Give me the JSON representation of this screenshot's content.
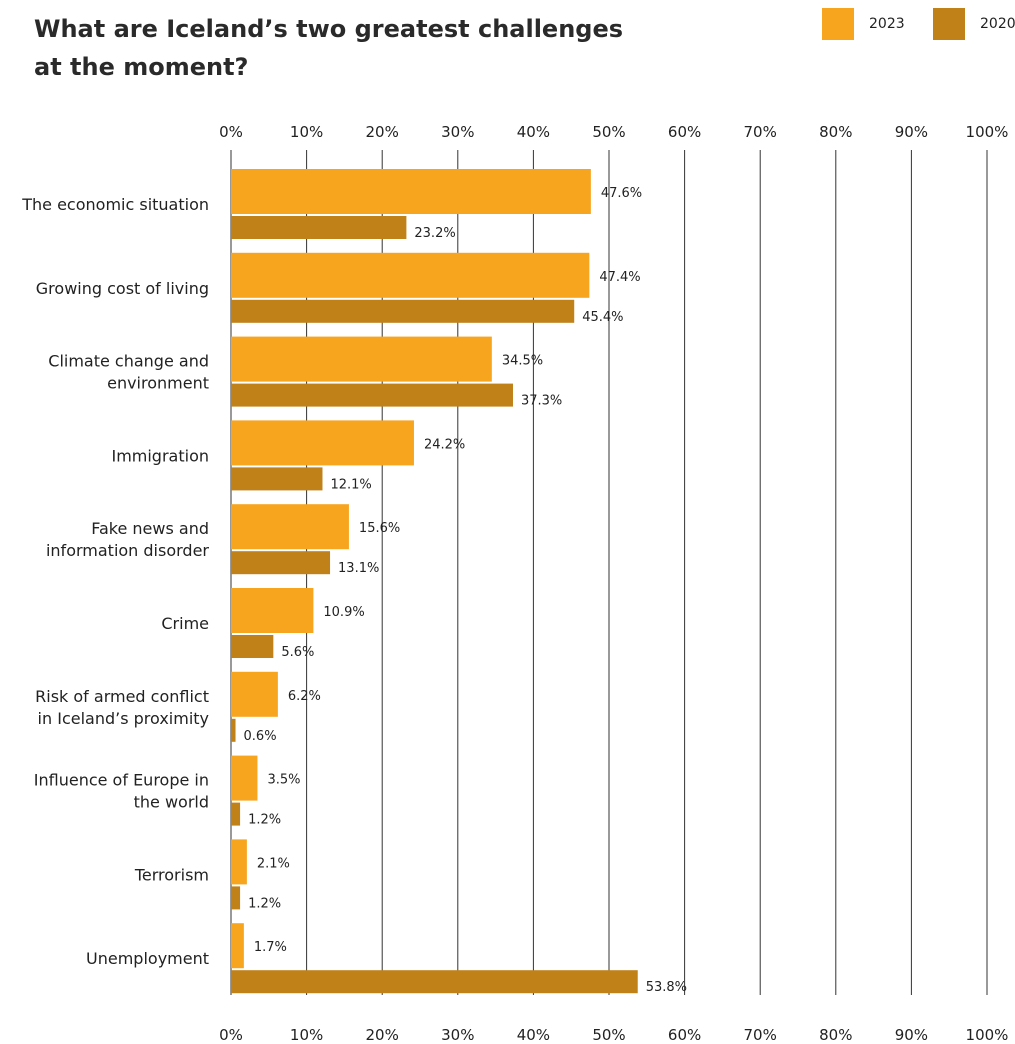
{
  "title": "What are Iceland’s two greatest challenges at the moment?",
  "colors": {
    "2023": "#F7A41F",
    "2020": "#C08119",
    "grid": "#333333"
  },
  "chart_data": {
    "type": "bar",
    "orientation": "horizontal",
    "title": "What are Iceland’s two greatest challenges at the moment?",
    "categories": [
      [
        "The economic situation"
      ],
      [
        "Growing cost of living"
      ],
      [
        "Climate change and",
        "environment"
      ],
      [
        "Immigration"
      ],
      [
        "Fake news and",
        "information disorder"
      ],
      [
        "Crime"
      ],
      [
        "Risk of armed conflict",
        "in Iceland’s proximity"
      ],
      [
        "Influence of Europe in",
        "the world"
      ],
      [
        "Terrorism"
      ],
      [
        "Unemployment"
      ]
    ],
    "series": [
      {
        "name": "2023",
        "color": "#F7A41F",
        "values": [
          47.6,
          47.4,
          34.5,
          24.2,
          15.6,
          10.9,
          6.2,
          3.5,
          2.1,
          1.7
        ],
        "labels": [
          "47.6%",
          "47.4%",
          "34.5%",
          "24.2%",
          "15.6%",
          "10.9%",
          "6.2%",
          "3.5%",
          "2.1%",
          "1.7%"
        ]
      },
      {
        "name": "2020",
        "color": "#C08119",
        "values": [
          23.2,
          45.4,
          37.3,
          12.1,
          13.1,
          5.6,
          0.6,
          1.2,
          1.2,
          53.8
        ],
        "labels": [
          "23.2%",
          "45.4%",
          "37.3%",
          "12.1%",
          "13.1%",
          "5.6%",
          "0.6%",
          "1.2%",
          "1.2%",
          "53.8%"
        ]
      }
    ],
    "xlim": [
      0,
      100
    ],
    "ticks": [
      "0%",
      "10%",
      "20%",
      "30%",
      "40%",
      "50%",
      "60%",
      "70%",
      "80%",
      "90%",
      "100%"
    ],
    "tick_axes": "top and bottom",
    "grid": true,
    "legend": "top-right"
  }
}
